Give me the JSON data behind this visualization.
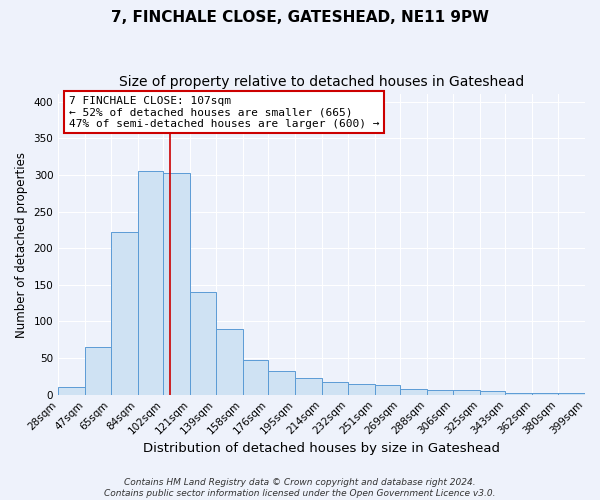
{
  "title": "7, FINCHALE CLOSE, GATESHEAD, NE11 9PW",
  "subtitle": "Size of property relative to detached houses in Gateshead",
  "xlabel": "Distribution of detached houses by size in Gateshead",
  "ylabel": "Number of detached properties",
  "bar_edges": [
    28,
    47,
    65,
    84,
    102,
    121,
    139,
    158,
    176,
    195,
    214,
    232,
    251,
    269,
    288,
    306,
    325,
    343,
    362,
    380,
    399
  ],
  "bar_heights": [
    10,
    65,
    222,
    305,
    302,
    140,
    90,
    47,
    32,
    23,
    17,
    14,
    13,
    8,
    6,
    6,
    5,
    2,
    3,
    3
  ],
  "bar_color": "#cfe2f3",
  "bar_edge_color": "#5b9bd5",
  "vline_x": 107,
  "vline_color": "#cc0000",
  "annotation_title": "7 FINCHALE CLOSE: 107sqm",
  "annotation_line1": "← 52% of detached houses are smaller (665)",
  "annotation_line2": "47% of semi-detached houses are larger (600) →",
  "annotation_box_edge_color": "#cc0000",
  "ylim": [
    0,
    410
  ],
  "tick_labels": [
    "28sqm",
    "47sqm",
    "65sqm",
    "84sqm",
    "102sqm",
    "121sqm",
    "139sqm",
    "158sqm",
    "176sqm",
    "195sqm",
    "214sqm",
    "232sqm",
    "251sqm",
    "269sqm",
    "288sqm",
    "306sqm",
    "325sqm",
    "343sqm",
    "362sqm",
    "380sqm",
    "399sqm"
  ],
  "footer_line1": "Contains HM Land Registry data © Crown copyright and database right 2024.",
  "footer_line2": "Contains public sector information licensed under the Open Government Licence v3.0.",
  "background_color": "#eef2fb",
  "grid_color": "#ffffff",
  "title_fontsize": 11,
  "subtitle_fontsize": 10,
  "xlabel_fontsize": 9.5,
  "ylabel_fontsize": 8.5,
  "tick_fontsize": 7.5,
  "footer_fontsize": 6.5,
  "ann_fontsize": 8
}
